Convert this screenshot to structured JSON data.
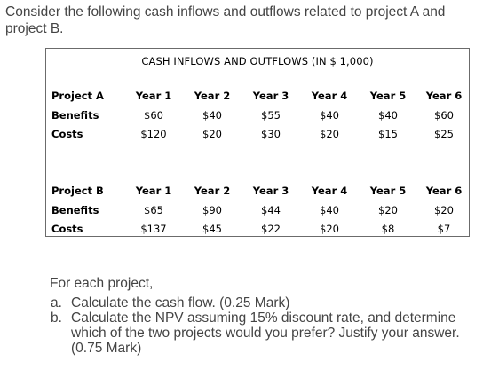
{
  "intro": "Consider the following cash inflows and outflows related to project A and project B.",
  "table": {
    "caption": "CASH INFLOWS AND OUTFLOWS (IN $ 1,000)",
    "projects": [
      {
        "name": "Project A",
        "years": [
          "Year 1",
          "Year 2",
          "Year 3",
          "Year 4",
          "Year 5",
          "Year 6"
        ],
        "rows": [
          {
            "label": "Benefits",
            "values": [
              "$60",
              "$40",
              "$55",
              "$40",
              "$40",
              "$60"
            ]
          },
          {
            "label": "Costs",
            "values": [
              "$120",
              "$20",
              "$30",
              "$20",
              "$15",
              "$25"
            ]
          }
        ]
      },
      {
        "name": "Project B",
        "years": [
          "Year 1",
          "Year 2",
          "Year 3",
          "Year 4",
          "Year 5",
          "Year 6"
        ],
        "rows": [
          {
            "label": "Benefits",
            "values": [
              "$65",
              "$90",
              "$44",
              "$40",
              "$20",
              "$20"
            ]
          },
          {
            "label": "Costs",
            "values": [
              "$137",
              "$45",
              "$22",
              "$20",
              "$8",
              "$7"
            ]
          }
        ]
      }
    ]
  },
  "questions": {
    "lead": "For each project,",
    "items": [
      {
        "marker": "a.",
        "text": "Calculate the cash flow. (0.25 Mark)"
      },
      {
        "marker": "b.",
        "text": "Calculate the NPV assuming 15% discount rate, and determine which of the two projects would you prefer? Justify your answer. (0.75 Mark)"
      }
    ]
  }
}
